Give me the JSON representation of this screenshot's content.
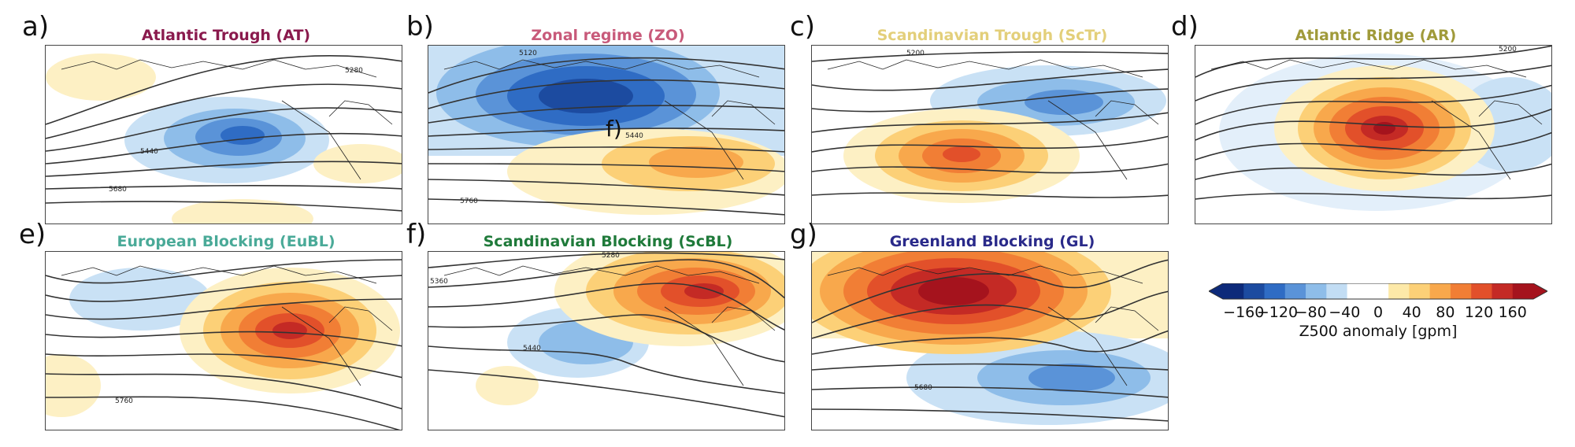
{
  "panels": [
    {
      "letter": "a)",
      "title": "Atlantic Trough (AT)",
      "title_color": "#8a1a4d",
      "contour_labels": [
        "5280",
        "5440",
        "5680"
      ]
    },
    {
      "letter": "b)",
      "title": "Zonal regime (ZO)",
      "title_color": "#c85a7a",
      "contour_labels": [
        "5120",
        "5440",
        "5760"
      ],
      "overlay_text": "f)"
    },
    {
      "letter": "c)",
      "title": "Scandinavian Trough (ScTr)",
      "title_color": "#e3cf7a",
      "contour_labels": [
        "5200"
      ]
    },
    {
      "letter": "d)",
      "title": "Atlantic Ridge (AR)",
      "title_color": "#a09a3a",
      "contour_labels": [
        "5200"
      ]
    },
    {
      "letter": "e)",
      "title": "European Blocking (EuBL)",
      "title_color": "#4aaa98",
      "contour_labels": [
        "5760"
      ]
    },
    {
      "letter": "f)",
      "title": "Scandinavian Blocking (ScBL)",
      "title_color": "#1f7a3a",
      "contour_labels": [
        "5280",
        "5360",
        "5440"
      ]
    },
    {
      "letter": "g)",
      "title": "Greenland Blocking (GL)",
      "title_color": "#2a2a8a",
      "contour_labels": [
        "5680"
      ]
    }
  ],
  "colorbar": {
    "label": "Z500 anomaly [gpm]",
    "ticks": [
      "−160",
      "−120",
      "−80",
      "−40",
      "0",
      "40",
      "80",
      "120",
      "160"
    ],
    "colors": [
      "#0d2a7a",
      "#1c4ba0",
      "#2f6cc4",
      "#5a93d8",
      "#8ebde9",
      "#c2ddf4",
      "#ffffff",
      "#ffffff",
      "#fde9a8",
      "#fcd077",
      "#f8a84c",
      "#f17e35",
      "#e2502a",
      "#c42a25",
      "#a5131d"
    ]
  }
}
